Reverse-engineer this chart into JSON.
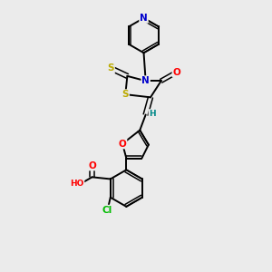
{
  "bg_color": "#ebebeb",
  "atom_colors": {
    "N": "#0000cc",
    "O": "#ff0000",
    "S": "#bbaa00",
    "Cl": "#00bb00",
    "C": "#000000",
    "H": "#008888"
  },
  "bond_color": "#000000",
  "figsize": [
    3.0,
    3.0
  ],
  "dpi": 100
}
